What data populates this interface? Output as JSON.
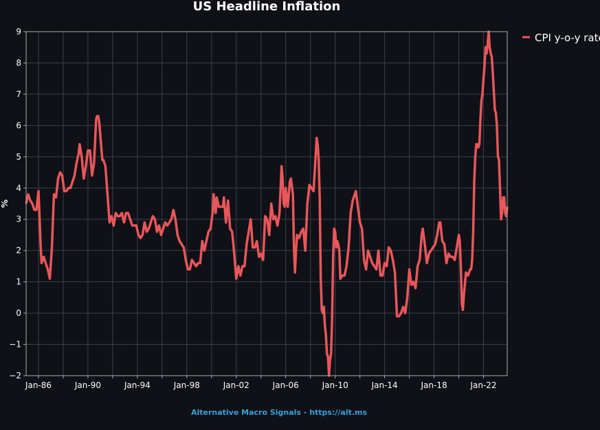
{
  "chart_data": {
    "type": "line",
    "title": "US Headline Inflation",
    "xlabel": "",
    "ylabel": "%",
    "ylim": [
      -2,
      9
    ],
    "xlim": [
      "1985-01",
      "2023-12"
    ],
    "y_ticks": [
      -2,
      -1,
      0,
      1,
      2,
      3,
      4,
      5,
      6,
      7,
      8,
      9
    ],
    "x_ticks": [
      {
        "date": "1986-01",
        "label": "Jan-86"
      },
      {
        "date": "1990-01",
        "label": "Jan-90"
      },
      {
        "date": "1994-01",
        "label": "Jan-94"
      },
      {
        "date": "1998-01",
        "label": "Jan-98"
      },
      {
        "date": "2002-01",
        "label": "Jan-02"
      },
      {
        "date": "2006-01",
        "label": "Jan-06"
      },
      {
        "date": "2010-01",
        "label": "Jan-10"
      },
      {
        "date": "2014-01",
        "label": "Jan-14"
      },
      {
        "date": "2018-01",
        "label": "Jan-18"
      },
      {
        "date": "2022-01",
        "label": "Jan-22"
      }
    ],
    "grid": true,
    "legend_position": "top-right-outside",
    "series": [
      {
        "name": "CPI y-o-y rate",
        "color": "#e8575a",
        "points": [
          [
            "1985-01",
            3.5
          ],
          [
            "1985-03",
            3.8
          ],
          [
            "1985-05",
            3.6
          ],
          [
            "1985-07",
            3.5
          ],
          [
            "1985-09",
            3.3
          ],
          [
            "1985-11",
            3.3
          ],
          [
            "1986-01",
            3.9
          ],
          [
            "1986-02",
            3.1
          ],
          [
            "1986-03",
            2.2
          ],
          [
            "1986-04",
            1.6
          ],
          [
            "1986-06",
            1.8
          ],
          [
            "1986-08",
            1.6
          ],
          [
            "1986-10",
            1.4
          ],
          [
            "1986-12",
            1.1
          ],
          [
            "1987-02",
            2.1
          ],
          [
            "1987-04",
            3.8
          ],
          [
            "1987-06",
            3.7
          ],
          [
            "1987-08",
            4.3
          ],
          [
            "1987-10",
            4.5
          ],
          [
            "1987-12",
            4.4
          ],
          [
            "1988-02",
            3.9
          ],
          [
            "1988-04",
            3.9
          ],
          [
            "1988-06",
            4.0
          ],
          [
            "1988-08",
            4.0
          ],
          [
            "1988-10",
            4.2
          ],
          [
            "1988-12",
            4.4
          ],
          [
            "1989-02",
            4.8
          ],
          [
            "1989-04",
            5.1
          ],
          [
            "1989-05",
            5.4
          ],
          [
            "1989-07",
            5.0
          ],
          [
            "1989-09",
            4.3
          ],
          [
            "1989-11",
            4.7
          ],
          [
            "1990-01",
            5.2
          ],
          [
            "1990-03",
            5.2
          ],
          [
            "1990-05",
            4.4
          ],
          [
            "1990-07",
            4.8
          ],
          [
            "1990-09",
            6.2
          ],
          [
            "1990-10",
            6.3
          ],
          [
            "1990-11",
            6.3
          ],
          [
            "1990-12",
            6.1
          ],
          [
            "1991-01",
            5.7
          ],
          [
            "1991-02",
            5.3
          ],
          [
            "1991-03",
            4.9
          ],
          [
            "1991-04",
            4.9
          ],
          [
            "1991-06",
            4.7
          ],
          [
            "1991-08",
            3.8
          ],
          [
            "1991-10",
            2.9
          ],
          [
            "1991-12",
            3.1
          ],
          [
            "1992-02",
            2.8
          ],
          [
            "1992-04",
            3.2
          ],
          [
            "1992-06",
            3.1
          ],
          [
            "1992-08",
            3.1
          ],
          [
            "1992-10",
            3.2
          ],
          [
            "1992-12",
            2.9
          ],
          [
            "1993-02",
            3.2
          ],
          [
            "1993-04",
            3.2
          ],
          [
            "1993-06",
            3.0
          ],
          [
            "1993-08",
            2.8
          ],
          [
            "1993-10",
            2.8
          ],
          [
            "1993-12",
            2.8
          ],
          [
            "1994-02",
            2.5
          ],
          [
            "1994-04",
            2.4
          ],
          [
            "1994-06",
            2.5
          ],
          [
            "1994-08",
            2.9
          ],
          [
            "1994-10",
            2.6
          ],
          [
            "1994-12",
            2.7
          ],
          [
            "1995-02",
            2.9
          ],
          [
            "1995-04",
            3.1
          ],
          [
            "1995-06",
            3.0
          ],
          [
            "1995-08",
            2.6
          ],
          [
            "1995-10",
            2.8
          ],
          [
            "1995-12",
            2.5
          ],
          [
            "1996-02",
            2.7
          ],
          [
            "1996-04",
            2.9
          ],
          [
            "1996-06",
            2.8
          ],
          [
            "1996-08",
            2.9
          ],
          [
            "1996-10",
            3.0
          ],
          [
            "1996-12",
            3.3
          ],
          [
            "1997-02",
            3.0
          ],
          [
            "1997-04",
            2.5
          ],
          [
            "1997-06",
            2.3
          ],
          [
            "1997-08",
            2.2
          ],
          [
            "1997-10",
            2.1
          ],
          [
            "1997-12",
            1.7
          ],
          [
            "1998-02",
            1.4
          ],
          [
            "1998-04",
            1.4
          ],
          [
            "1998-06",
            1.7
          ],
          [
            "1998-08",
            1.6
          ],
          [
            "1998-10",
            1.5
          ],
          [
            "1998-12",
            1.6
          ],
          [
            "1999-02",
            1.6
          ],
          [
            "1999-04",
            2.3
          ],
          [
            "1999-06",
            2.0
          ],
          [
            "1999-08",
            2.3
          ],
          [
            "1999-10",
            2.6
          ],
          [
            "1999-12",
            2.7
          ],
          [
            "2000-02",
            3.2
          ],
          [
            "2000-03",
            3.8
          ],
          [
            "2000-05",
            3.2
          ],
          [
            "2000-06",
            3.7
          ],
          [
            "2000-08",
            3.4
          ],
          [
            "2000-10",
            3.4
          ],
          [
            "2000-12",
            3.4
          ],
          [
            "2001-01",
            3.7
          ],
          [
            "2001-03",
            2.9
          ],
          [
            "2001-05",
            3.6
          ],
          [
            "2001-07",
            2.7
          ],
          [
            "2001-09",
            2.6
          ],
          [
            "2001-11",
            1.9
          ],
          [
            "2002-01",
            1.1
          ],
          [
            "2002-03",
            1.5
          ],
          [
            "2002-05",
            1.2
          ],
          [
            "2002-07",
            1.5
          ],
          [
            "2002-09",
            1.5
          ],
          [
            "2002-11",
            2.2
          ],
          [
            "2003-01",
            2.6
          ],
          [
            "2003-03",
            3.0
          ],
          [
            "2003-05",
            2.1
          ],
          [
            "2003-07",
            2.1
          ],
          [
            "2003-09",
            2.3
          ],
          [
            "2003-11",
            1.8
          ],
          [
            "2004-01",
            1.9
          ],
          [
            "2004-03",
            1.7
          ],
          [
            "2004-05",
            3.1
          ],
          [
            "2004-07",
            3.0
          ],
          [
            "2004-09",
            2.5
          ],
          [
            "2004-11",
            3.5
          ],
          [
            "2005-01",
            3.0
          ],
          [
            "2005-03",
            3.1
          ],
          [
            "2005-05",
            2.8
          ],
          [
            "2005-07",
            3.2
          ],
          [
            "2005-09",
            4.7
          ],
          [
            "2005-10",
            4.3
          ],
          [
            "2005-11",
            3.5
          ],
          [
            "2005-12",
            3.4
          ],
          [
            "2006-01",
            4.0
          ],
          [
            "2006-03",
            3.4
          ],
          [
            "2006-05",
            4.2
          ],
          [
            "2006-06",
            4.3
          ],
          [
            "2006-08",
            3.8
          ],
          [
            "2006-09",
            2.1
          ],
          [
            "2006-10",
            1.3
          ],
          [
            "2006-11",
            2.0
          ],
          [
            "2006-12",
            2.5
          ],
          [
            "2007-02",
            2.4
          ],
          [
            "2007-04",
            2.6
          ],
          [
            "2007-06",
            2.7
          ],
          [
            "2007-08",
            2.0
          ],
          [
            "2007-10",
            3.5
          ],
          [
            "2007-12",
            4.1
          ],
          [
            "2008-02",
            4.0
          ],
          [
            "2008-04",
            3.9
          ],
          [
            "2008-06",
            5.0
          ],
          [
            "2008-07",
            5.6
          ],
          [
            "2008-08",
            5.4
          ],
          [
            "2008-09",
            4.9
          ],
          [
            "2008-10",
            3.7
          ],
          [
            "2008-11",
            1.1
          ],
          [
            "2008-12",
            0.1
          ],
          [
            "2009-01",
            0.0
          ],
          [
            "2009-02",
            0.2
          ],
          [
            "2009-03",
            -0.4
          ],
          [
            "2009-04",
            -0.7
          ],
          [
            "2009-05",
            -1.3
          ],
          [
            "2009-06",
            -1.4
          ],
          [
            "2009-07",
            -2.0
          ],
          [
            "2009-08",
            -1.5
          ],
          [
            "2009-09",
            -1.3
          ],
          [
            "2009-10",
            -0.2
          ],
          [
            "2009-11",
            1.8
          ],
          [
            "2009-12",
            2.7
          ],
          [
            "2010-01",
            2.6
          ],
          [
            "2010-02",
            2.1
          ],
          [
            "2010-03",
            2.3
          ],
          [
            "2010-04",
            2.2
          ],
          [
            "2010-05",
            2.0
          ],
          [
            "2010-06",
            1.1
          ],
          [
            "2010-08",
            1.2
          ],
          [
            "2010-10",
            1.2
          ],
          [
            "2010-12",
            1.5
          ],
          [
            "2011-02",
            2.1
          ],
          [
            "2011-04",
            3.2
          ],
          [
            "2011-06",
            3.6
          ],
          [
            "2011-08",
            3.8
          ],
          [
            "2011-09",
            3.9
          ],
          [
            "2011-11",
            3.4
          ],
          [
            "2012-01",
            2.9
          ],
          [
            "2012-03",
            2.7
          ],
          [
            "2012-05",
            1.7
          ],
          [
            "2012-07",
            1.4
          ],
          [
            "2012-09",
            2.0
          ],
          [
            "2012-11",
            1.8
          ],
          [
            "2013-01",
            1.6
          ],
          [
            "2013-03",
            1.5
          ],
          [
            "2013-05",
            1.4
          ],
          [
            "2013-07",
            2.0
          ],
          [
            "2013-09",
            1.2
          ],
          [
            "2013-11",
            1.2
          ],
          [
            "2014-01",
            1.6
          ],
          [
            "2014-03",
            1.5
          ],
          [
            "2014-05",
            2.1
          ],
          [
            "2014-07",
            2.0
          ],
          [
            "2014-09",
            1.7
          ],
          [
            "2014-11",
            1.3
          ],
          [
            "2015-01",
            -0.1
          ],
          [
            "2015-02",
            -0.1
          ],
          [
            "2015-03",
            -0.1
          ],
          [
            "2015-05",
            0.0
          ],
          [
            "2015-07",
            0.2
          ],
          [
            "2015-09",
            0.0
          ],
          [
            "2015-11",
            0.5
          ],
          [
            "2016-01",
            1.4
          ],
          [
            "2016-03",
            0.9
          ],
          [
            "2016-05",
            1.0
          ],
          [
            "2016-07",
            0.8
          ],
          [
            "2016-09",
            1.5
          ],
          [
            "2016-11",
            1.7
          ],
          [
            "2017-01",
            2.5
          ],
          [
            "2017-02",
            2.7
          ],
          [
            "2017-04",
            2.2
          ],
          [
            "2017-06",
            1.6
          ],
          [
            "2017-08",
            1.9
          ],
          [
            "2017-10",
            2.0
          ],
          [
            "2017-12",
            2.1
          ],
          [
            "2018-02",
            2.2
          ],
          [
            "2018-04",
            2.5
          ],
          [
            "2018-06",
            2.9
          ],
          [
            "2018-07",
            2.9
          ],
          [
            "2018-09",
            2.3
          ],
          [
            "2018-11",
            2.2
          ],
          [
            "2019-01",
            1.6
          ],
          [
            "2019-03",
            1.9
          ],
          [
            "2019-05",
            1.8
          ],
          [
            "2019-07",
            1.8
          ],
          [
            "2019-09",
            1.7
          ],
          [
            "2019-11",
            2.1
          ],
          [
            "2020-01",
            2.5
          ],
          [
            "2020-02",
            2.3
          ],
          [
            "2020-03",
            1.5
          ],
          [
            "2020-04",
            0.3
          ],
          [
            "2020-05",
            0.1
          ],
          [
            "2020-06",
            0.6
          ],
          [
            "2020-08",
            1.3
          ],
          [
            "2020-10",
            1.2
          ],
          [
            "2020-12",
            1.4
          ],
          [
            "2021-01",
            1.4
          ],
          [
            "2021-02",
            1.7
          ],
          [
            "2021-03",
            2.6
          ],
          [
            "2021-04",
            4.2
          ],
          [
            "2021-05",
            5.0
          ],
          [
            "2021-06",
            5.4
          ],
          [
            "2021-07",
            5.4
          ],
          [
            "2021-08",
            5.3
          ],
          [
            "2021-09",
            5.4
          ],
          [
            "2021-10",
            6.2
          ],
          [
            "2021-11",
            6.8
          ],
          [
            "2021-12",
            7.0
          ],
          [
            "2022-01",
            7.5
          ],
          [
            "2022-02",
            7.9
          ],
          [
            "2022-03",
            8.5
          ],
          [
            "2022-04",
            8.3
          ],
          [
            "2022-05",
            8.6
          ],
          [
            "2022-06",
            9.1
          ],
          [
            "2022-07",
            8.5
          ],
          [
            "2022-08",
            8.3
          ],
          [
            "2022-09",
            8.2
          ],
          [
            "2022-10",
            7.7
          ],
          [
            "2022-11",
            7.1
          ],
          [
            "2022-12",
            6.5
          ],
          [
            "2023-01",
            6.4
          ],
          [
            "2023-02",
            6.0
          ],
          [
            "2023-03",
            5.0
          ],
          [
            "2023-04",
            4.9
          ],
          [
            "2023-05",
            4.0
          ],
          [
            "2023-06",
            3.0
          ],
          [
            "2023-07",
            3.2
          ],
          [
            "2023-08",
            3.7
          ],
          [
            "2023-09",
            3.7
          ],
          [
            "2023-10",
            3.2
          ],
          [
            "2023-11",
            3.1
          ],
          [
            "2023-12",
            3.4
          ]
        ]
      }
    ]
  },
  "footer": {
    "source": "Alternative Macro Signals - https://alt.ms"
  }
}
